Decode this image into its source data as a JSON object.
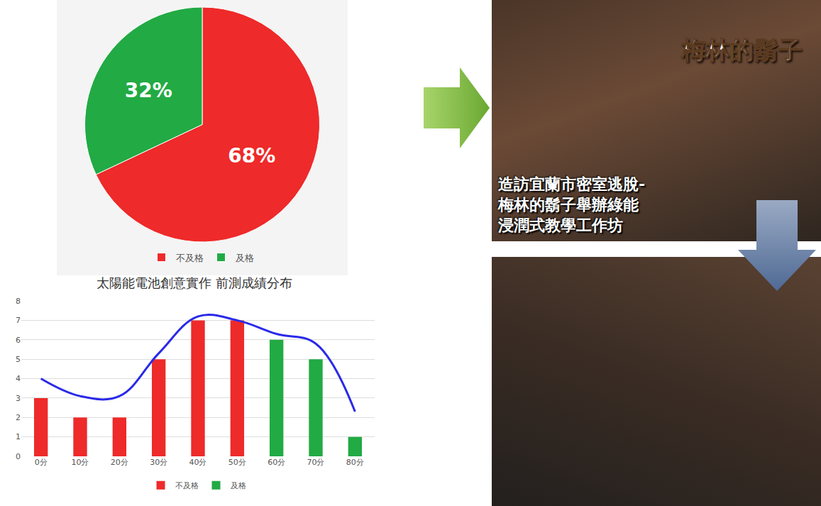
{
  "chart_data": [
    {
      "type": "pie",
      "categories": [
        "不及格",
        "及格"
      ],
      "values": [
        68,
        32
      ],
      "value_labels": [
        "68%",
        "32%"
      ],
      "colors": [
        "#ee2a2a",
        "#22aa44"
      ],
      "data_labels": true,
      "legend": "bottom"
    },
    {
      "type": "bar",
      "title": "太陽能電池創意實作 前測成績分布",
      "categories": [
        "0分",
        "10分",
        "20分",
        "30分",
        "40分",
        "50分",
        "60分",
        "70分",
        "80分"
      ],
      "series": [
        {
          "name": "不及格",
          "color": "#ee2a2a",
          "values": [
            3,
            2,
            2,
            5,
            7,
            7,
            null,
            null,
            null
          ]
        },
        {
          "name": "及格",
          "color": "#22aa44",
          "values": [
            null,
            null,
            null,
            null,
            null,
            null,
            6,
            5,
            1
          ]
        },
        {
          "type": "line",
          "color": "#2a2ae8",
          "line_style": "spline",
          "values": [
            4,
            3.1,
            3.1,
            5.3,
            7.2,
            7,
            6.3,
            5.8,
            2.3
          ]
        }
      ],
      "ylim": [
        0,
        8
      ],
      "yticks": [
        0,
        1,
        2,
        3,
        4,
        5,
        6,
        7,
        8
      ],
      "grid": true,
      "legend": "bottom"
    }
  ],
  "photo_caption": {
    "sign": "梅林的鬍子",
    "caption": [
      "造訪宜蘭市密室逃脫-",
      "梅林的鬍子舉辦綠能",
      "浸潤式教學工作坊"
    ]
  }
}
